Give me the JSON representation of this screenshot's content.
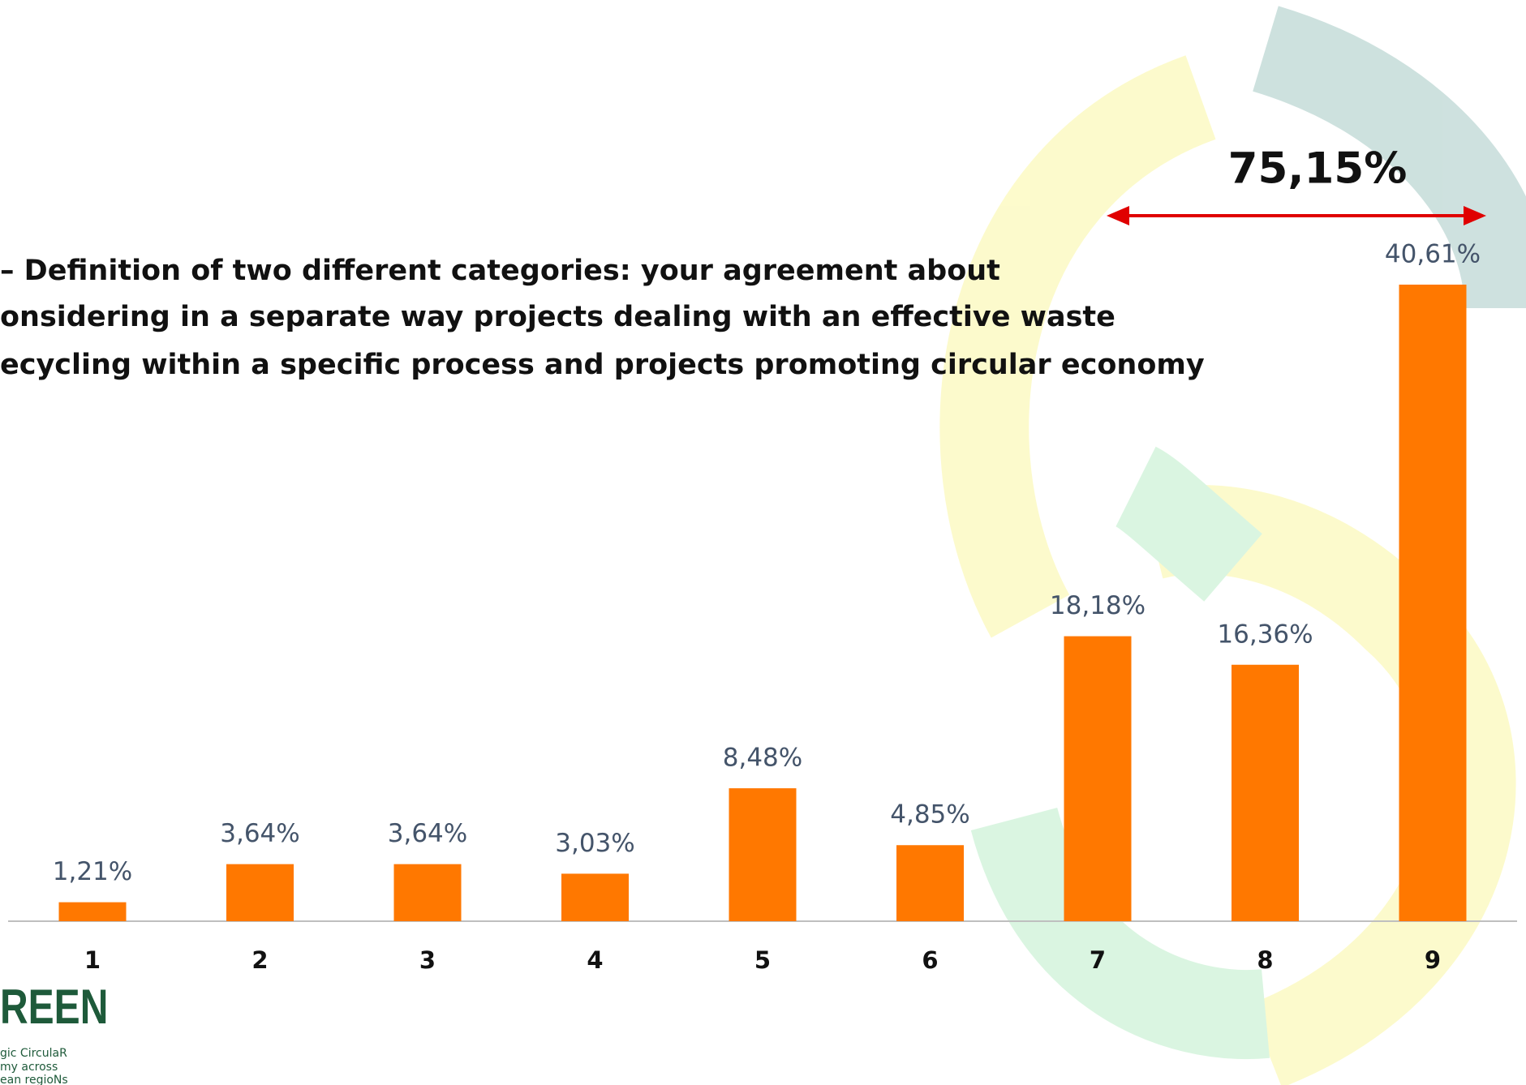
{
  "chart_data": {
    "type": "bar",
    "title_lines": [
      "–  Definition of two different categories: your agreement about",
      "onsidering in a separate way projects dealing with an effective waste",
      "ecycling within a specific process  and projects promoting circular economy"
    ],
    "categories": [
      "1",
      "2",
      "3",
      "4",
      "5",
      "6",
      "7",
      "8",
      "9"
    ],
    "values": [
      1.21,
      3.64,
      3.64,
      3.03,
      8.48,
      4.85,
      18.18,
      16.36,
      40.61
    ],
    "value_labels": [
      "1,21%",
      "3,64%",
      "3,64%",
      "3,03%",
      "8,48%",
      "4,85%",
      "18,18%",
      "16,36%",
      "40,61%"
    ],
    "color": "#ff7800",
    "annotation": "75,15%"
  },
  "logo": {
    "name": "REEN",
    "lines": [
      "gic CirculaR",
      "my across",
      "ean regioNs"
    ]
  }
}
